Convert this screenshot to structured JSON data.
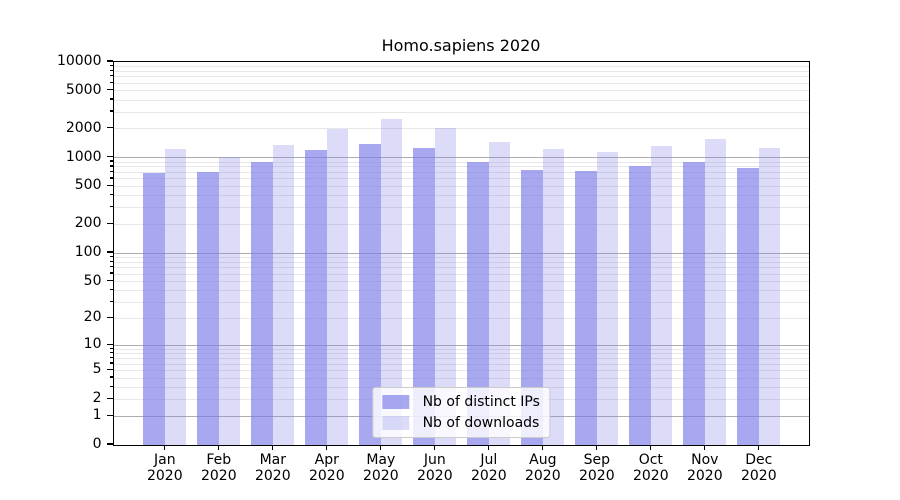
{
  "chart_data": {
    "type": "bar",
    "title": "Homo.sapiens 2020",
    "categories": [
      "Jan",
      "Feb",
      "Mar",
      "Apr",
      "May",
      "Jun",
      "Jul",
      "Aug",
      "Sep",
      "Oct",
      "Nov",
      "Dec"
    ],
    "x_tick_year": "2020",
    "series": [
      {
        "name": "Nb of distinct IPs",
        "color_hex": "#7a7ae8",
        "alpha": 0.65,
        "values": [
          680,
          695,
          900,
          1190,
          1370,
          1240,
          900,
          735,
          720,
          805,
          900,
          770
        ]
      },
      {
        "name": "Nb of downloads",
        "color_hex": "#8282eb",
        "alpha": 0.28,
        "values": [
          1220,
          1005,
          1345,
          1960,
          2480,
          2010,
          1460,
          1220,
          1135,
          1305,
          1540,
          1250
        ]
      }
    ],
    "y_scale": "log10(1+x)",
    "ylim": [
      0,
      10000
    ],
    "y_ticks": [
      10000,
      5000,
      2000,
      1000,
      500,
      200,
      100,
      50,
      20,
      10,
      5,
      2,
      1,
      0
    ],
    "y_major_gridlines": [
      1,
      10,
      100,
      1000
    ],
    "grid": true,
    "legend_position": "lower center inside",
    "xlabel": "",
    "ylabel": ""
  },
  "colors": {
    "bar_distinct_ips_displayed": "#a9a9f0",
    "bar_downloads_displayed": "#dcdcf7",
    "grid_major": "#adadad",
    "grid_minor": "#e7e7e7",
    "axis": "#000000",
    "background": "#ffffff"
  }
}
